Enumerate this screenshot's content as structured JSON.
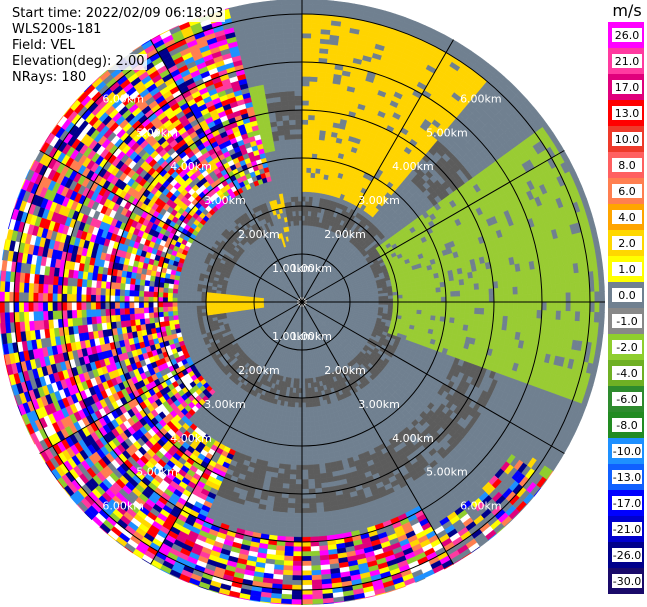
{
  "header": {
    "start_time": "Start time: 2022/02/09 06:18:03",
    "instrument": "WLS200s-181",
    "field": "Field: VEL",
    "elevation": "Elevation(deg): 2.00",
    "nrays": "NRays: 180"
  },
  "chart_data": {
    "type": "heatmap",
    "projection": "polar (PPI)",
    "field": "VEL",
    "rings": [
      "1.00km",
      "2.00km",
      "3.00km",
      "4.00km",
      "5.00km",
      "6.00km"
    ],
    "ring_km": [
      1,
      2,
      3,
      4,
      5,
      6
    ],
    "max_range_km": 6.4,
    "colorbar": {
      "unit": "m/s",
      "ticks": [
        "26.0",
        "21.0",
        "17.0",
        "13.0",
        "10.0",
        "8.0",
        "6.0",
        "4.0",
        "2.0",
        "1.0",
        "0.0",
        "-1.0",
        "-2.0",
        "-4.0",
        "-6.0",
        "-8.0",
        "-10.0",
        "-13.0",
        "-17.0",
        "-21.0",
        "-26.0",
        "-30.0"
      ],
      "colors": [
        "#ff00ff",
        "#ff3aa0",
        "#e0007c",
        "#ff0000",
        "#ee3a2a",
        "#ff6060",
        "#ff7f50",
        "#ffa500",
        "#ffd700",
        "#ffff00",
        "#708090",
        "#888888",
        "#8fce2e",
        "#6fb024",
        "#2e8b2e",
        "#228b22",
        "#1e90ff",
        "#1060ff",
        "#0000ff",
        "#0000cd",
        "#00008b",
        "#1a0a6a"
      ]
    },
    "regions": [
      {
        "value": "0.0 to -1.0",
        "color": "#708090",
        "desc": "near-zero background"
      },
      {
        "value": "1.0 to 2.0",
        "color": "#ffd700",
        "desc": "north to north-east band"
      },
      {
        "value": "-1.0 to -2.0",
        "color": "#8fce2e",
        "desc": "east band"
      },
      {
        "value": "mixed",
        "desc": "noisy far range west and south"
      }
    ]
  }
}
